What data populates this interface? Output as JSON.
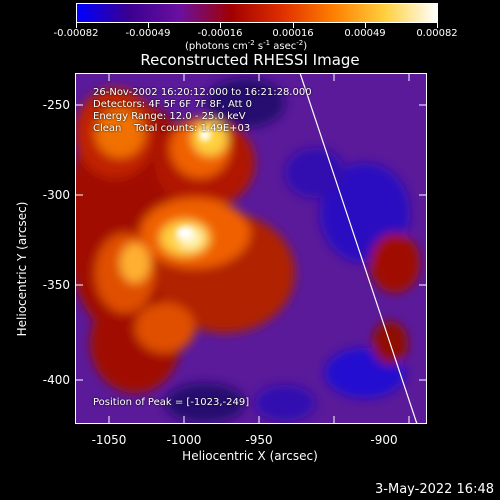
{
  "colorbar": {
    "colors": [
      "#0000ff",
      "#3a0090",
      "#6a10a0",
      "#a00000",
      "#e03000",
      "#ff8000",
      "#ffd040",
      "#ffffff"
    ],
    "tick_labels": [
      "-0.00082",
      "-0.00049",
      "-0.00016",
      "0.00016",
      "0.00049",
      "0.00082"
    ],
    "units_prefix": "(photons cm",
    "units_exp1": "-2",
    "units_mid": " s",
    "units_exp2": "-1",
    "units_mid2": " asec",
    "units_exp3": "-2",
    "units_suffix": ")"
  },
  "plot": {
    "title": "Reconstructed RHESSI Image",
    "xlabel": "Heliocentric X (arcsec)",
    "ylabel": "Heliocentric Y (arcsec)",
    "xticks": [
      "-1050",
      "-1000",
      "-950",
      "-900"
    ],
    "yticks": [
      "-250",
      "-300",
      "-350",
      "-400"
    ],
    "annotations": {
      "time": "26-Nov-2002 16:20:12.000 to 16:21:28.000",
      "detectors": "Detectors: 4F 5F 6F 7F 8F, Att 0",
      "energy": "Energy Range: 12.0 - 25.0 keV",
      "clean": "Clean    Total counts: 1.49E+03",
      "peak": "Position of Peak = [-1023,-249]"
    }
  },
  "timestamp": "3-May-2022 16:48"
}
